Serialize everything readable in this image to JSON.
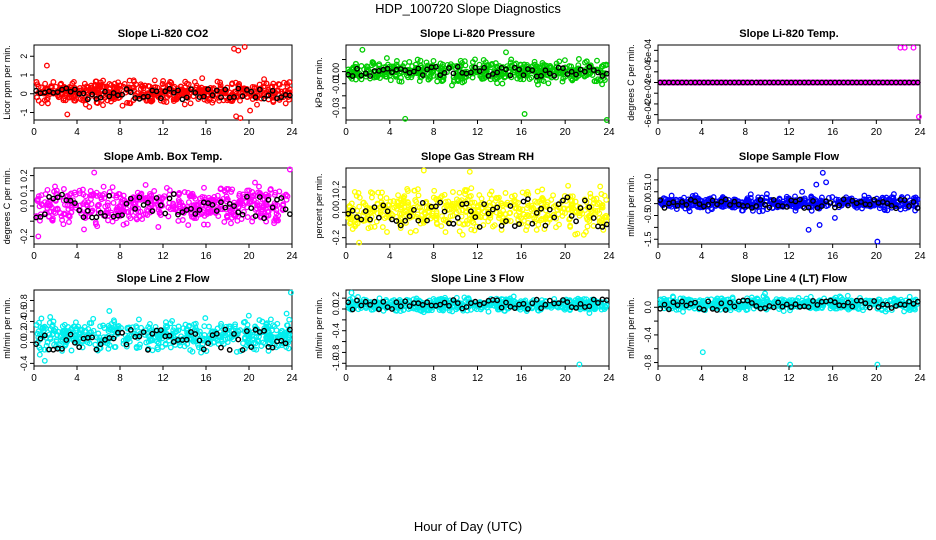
{
  "figure": {
    "title": "HDP_100720  Slope Diagnostics",
    "xlabel": "Hour of Day (UTC)"
  },
  "chart_data": [
    {
      "type": "scatter",
      "title": "Slope Li-820 CO2",
      "ylabel": "Licor ppm per min.",
      "color": "#ff0000",
      "xlim": [
        0,
        24
      ],
      "xticks": [
        0,
        4,
        8,
        12,
        16,
        20,
        24
      ],
      "ylim": [
        -1.4,
        2.6
      ],
      "yticks": [
        -1,
        0,
        1,
        2
      ],
      "ytick_labels": [
        "-1",
        "0",
        "1",
        "2"
      ],
      "band": [
        -0.8,
        1.0
      ],
      "center": 0.0,
      "black_spread": 0.3,
      "outliers": [
        [
          18.6,
          2.4
        ],
        [
          19.0,
          2.3
        ],
        [
          19.6,
          2.5
        ],
        [
          18.8,
          -1.2
        ],
        [
          19.2,
          -1.3
        ],
        [
          20.1,
          -0.9
        ],
        [
          3.1,
          -1.1
        ],
        [
          1.2,
          1.5
        ]
      ]
    },
    {
      "type": "scatter",
      "title": "Slope Li-820 Pressure",
      "ylabel": "kPa per min.",
      "color": "#00cc00",
      "xlim": [
        0,
        24
      ],
      "xticks": [
        0,
        4,
        8,
        12,
        16,
        20,
        24
      ],
      "ylim": [
        -0.04,
        0.022
      ],
      "yticks": [
        -0.03,
        -0.02,
        -0.01,
        0.0,
        0.01
      ],
      "ytick_labels": [
        "-0.03",
        "",
        "-0.01",
        "0.00",
        ""
      ],
      "band": [
        -0.012,
        0.012
      ],
      "center": 0.0,
      "black_spread": 0.004,
      "outliers": [
        [
          5.4,
          -0.039
        ],
        [
          16.3,
          -0.035
        ],
        [
          23.8,
          -0.04
        ],
        [
          1.5,
          0.018
        ],
        [
          14.6,
          0.016
        ]
      ]
    },
    {
      "type": "scatter",
      "title": "Slope Li-820 Temp.",
      "ylabel": "degrees C per min.",
      "color": "#ff00ff",
      "xlim": [
        0,
        24
      ],
      "xticks": [
        0,
        4,
        8,
        12,
        16,
        20,
        24
      ],
      "ylim": [
        -0.0007,
        0.0007
      ],
      "yticks": [
        -0.0006,
        -0.0004,
        -0.0002,
        0.0,
        0.0002,
        0.0004,
        0.0006
      ],
      "ytick_labels": [
        "-6e-04",
        "",
        "-2e-04",
        "",
        "2e-04",
        "",
        "6e-04"
      ],
      "band": [
        0,
        0
      ],
      "center": 0.0,
      "black_spread": 0.0,
      "flat": true,
      "outliers": [
        [
          22.2,
          0.00065
        ],
        [
          22.6,
          0.00065
        ],
        [
          23.4,
          0.00065
        ],
        [
          23.9,
          -0.00064
        ]
      ]
    },
    {
      "type": "scatter",
      "title": "Slope Amb. Box Temp.",
      "ylabel": "degrees C per min.",
      "color": "#ff00ff",
      "xlim": [
        0,
        24
      ],
      "xticks": [
        0,
        4,
        8,
        12,
        16,
        20,
        24
      ],
      "ylim": [
        -0.25,
        0.25
      ],
      "yticks": [
        -0.2,
        -0.1,
        0.0,
        0.1,
        0.2
      ],
      "ytick_labels": [
        "-0.2",
        "",
        "0.0",
        "0.1",
        "0.2"
      ],
      "band": [
        -0.17,
        0.17
      ],
      "center": 0.0,
      "black_spread": 0.08,
      "outliers": [
        [
          23.8,
          0.24
        ],
        [
          0.4,
          -0.2
        ],
        [
          5.6,
          0.22
        ]
      ]
    },
    {
      "type": "scatter",
      "title": "Slope Gas Stream RH",
      "ylabel": "percent per min.",
      "color": "#ffff00",
      "xlim": [
        0,
        24
      ],
      "xticks": [
        0,
        4,
        8,
        12,
        16,
        20,
        24
      ],
      "ylim": [
        -0.25,
        0.35
      ],
      "yticks": [
        -0.2,
        -0.1,
        0.0,
        0.1,
        0.2
      ],
      "ytick_labels": [
        "-0.2",
        "",
        "0.0",
        "0.1",
        "0.2"
      ],
      "band": [
        -0.22,
        0.25
      ],
      "center": 0.0,
      "black_spread": 0.12,
      "outliers": [
        [
          7.1,
          0.33
        ],
        [
          11.3,
          0.32
        ],
        [
          1.2,
          -0.24
        ]
      ]
    },
    {
      "type": "scatter",
      "title": "Slope Sample Flow",
      "ylabel": "ml/min per min.",
      "color": "#0000ff",
      "xlim": [
        0,
        24
      ],
      "xticks": [
        0,
        4,
        8,
        12,
        16,
        20,
        24
      ],
      "ylim": [
        -1.7,
        1.5
      ],
      "yticks": [
        -1.5,
        -1.0,
        -0.5,
        0.0,
        0.5,
        1.0
      ],
      "ytick_labels": [
        "-1.5",
        "",
        "-0.5",
        "0.0",
        "0.5",
        "1.0"
      ],
      "band": [
        -0.4,
        0.45
      ],
      "center": 0.0,
      "black_spread": 0.2,
      "outliers": [
        [
          15.1,
          1.3
        ],
        [
          14.5,
          0.8
        ],
        [
          13.8,
          -1.1
        ],
        [
          14.8,
          -0.9
        ],
        [
          15.4,
          0.9
        ],
        [
          20.1,
          -1.6
        ],
        [
          16.2,
          -0.6
        ],
        [
          13.2,
          0.5
        ]
      ]
    },
    {
      "type": "scatter",
      "title": "Slope Line 2 Flow",
      "ylabel": "ml/min per min.",
      "color": "#00eeee",
      "xlim": [
        0,
        24
      ],
      "xticks": [
        0,
        4,
        8,
        12,
        16,
        20,
        24
      ],
      "ylim": [
        -0.45,
        1.0
      ],
      "yticks": [
        -0.4,
        0.0,
        0.2,
        0.4,
        0.6,
        0.8
      ],
      "ytick_labels": [
        "-0.4",
        "0.0",
        "0.2",
        "0.4",
        "0.6",
        "0.8"
      ],
      "band": [
        -0.3,
        0.55
      ],
      "center": 0.05,
      "black_spread": 0.2,
      "outliers": [
        [
          23.9,
          0.95
        ],
        [
          7.0,
          0.6
        ],
        [
          23.5,
          0.55
        ],
        [
          1.0,
          -0.35
        ]
      ]
    },
    {
      "type": "scatter",
      "title": "Slope Line 3 Flow",
      "ylabel": "ml/min per min.",
      "color": "#00eeee",
      "xlim": [
        0,
        24
      ],
      "xticks": [
        0,
        4,
        8,
        12,
        16,
        20,
        24
      ],
      "ylim": [
        -1.05,
        0.35
      ],
      "yticks": [
        -1.0,
        -0.8,
        -0.6,
        -0.4,
        -0.2,
        0.0,
        0.2
      ],
      "ytick_labels": [
        "-1.0",
        "-0.8",
        "",
        "-0.4",
        "",
        "0.0",
        "0.2"
      ],
      "band": [
        -0.1,
        0.25
      ],
      "center": 0.08,
      "black_spread": 0.1,
      "outliers": [
        [
          21.3,
          -1.02
        ],
        [
          0.5,
          0.3
        ]
      ]
    },
    {
      "type": "scatter",
      "title": "Slope Line 4 (LT) Flow",
      "ylabel": "ml/min per min.",
      "color": "#00eeee",
      "xlim": [
        0,
        24
      ],
      "xticks": [
        0,
        4,
        8,
        12,
        16,
        20,
        24
      ],
      "ylim": [
        -0.85,
        0.25
      ],
      "yticks": [
        -0.8,
        -0.6,
        -0.4,
        -0.2,
        0.0
      ],
      "ytick_labels": [
        "-0.8",
        "",
        "-0.4",
        "",
        "0.0"
      ],
      "band": [
        -0.08,
        0.18
      ],
      "center": 0.03,
      "black_spread": 0.07,
      "outliers": [
        [
          4.1,
          -0.65
        ],
        [
          12.1,
          -0.83
        ],
        [
          20.1,
          -0.83
        ],
        [
          9.8,
          0.2
        ]
      ]
    }
  ]
}
